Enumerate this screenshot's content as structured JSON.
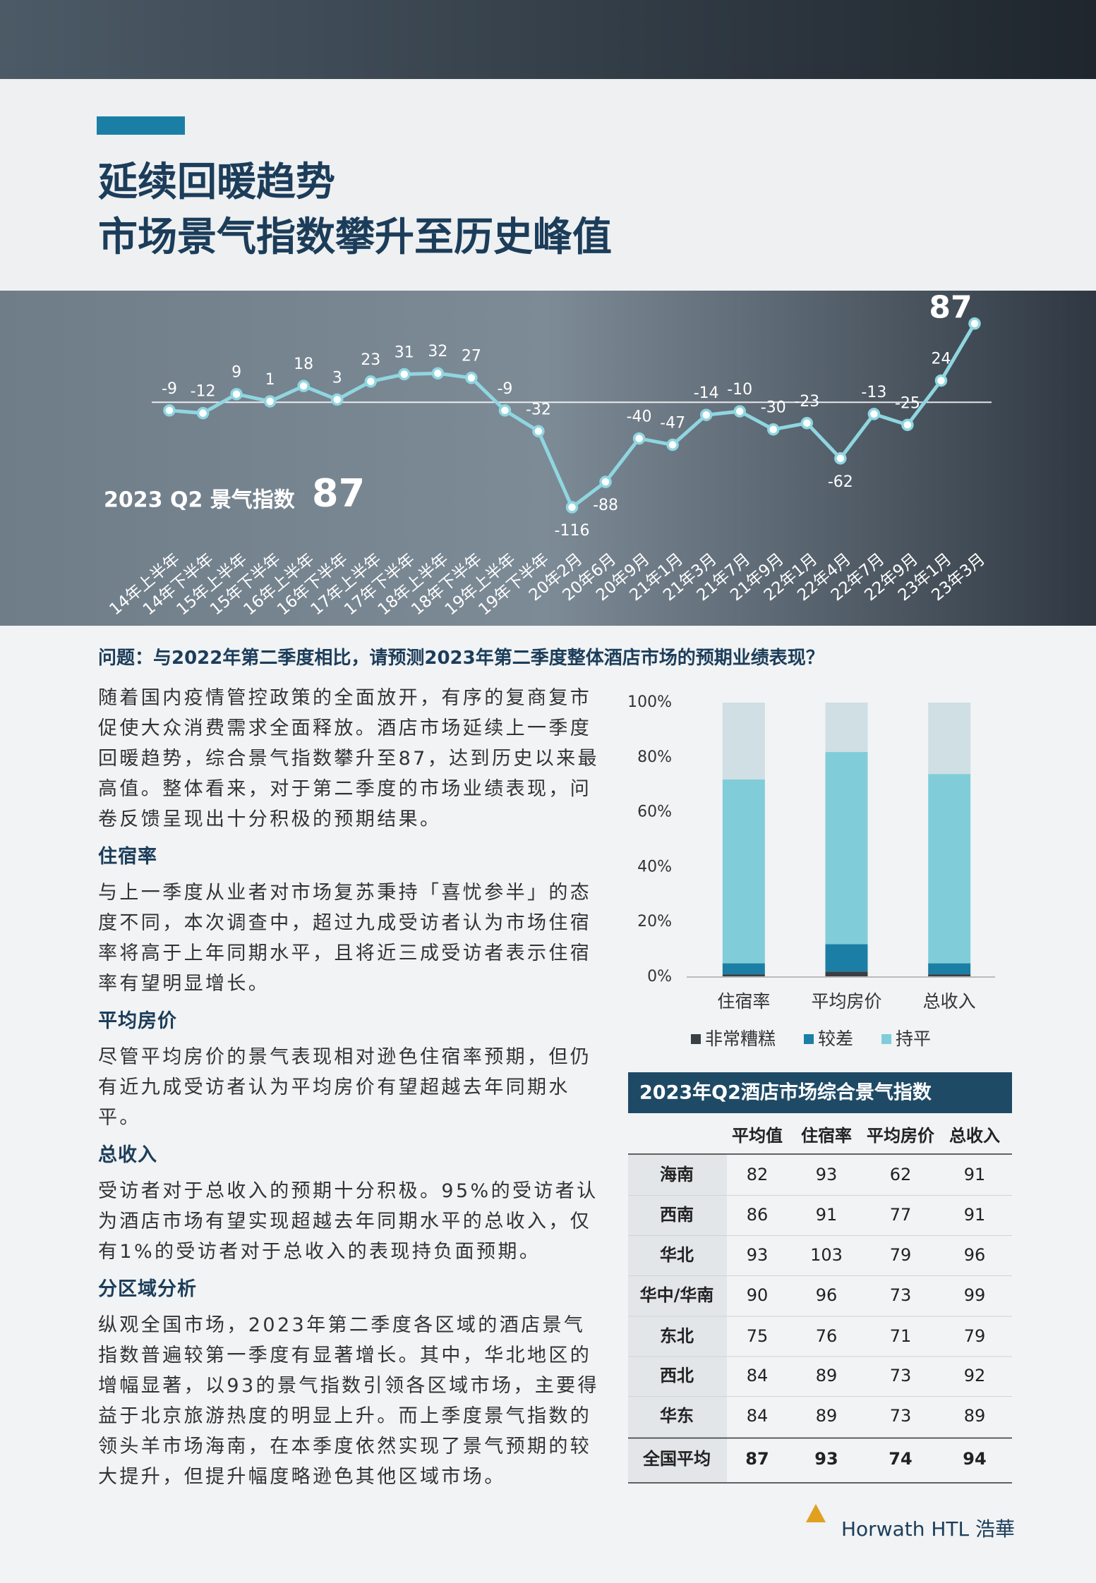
{
  "header": {
    "title_lines": [
      "延续回暖趋势",
      "市场景气指数攀升至历史峰值"
    ]
  },
  "chart_data": [
    {
      "type": "line",
      "categories": [
        "14年上半年",
        "14年下半年",
        "15年上半年",
        "15年下半年",
        "16年上半年",
        "16年下半年",
        "17年上半年",
        "17年下半年",
        "18年上半年",
        "18年下半年",
        "19年上半年",
        "19年下半年",
        "20年2月",
        "20年6月",
        "20年9月",
        "21年1月",
        "21年3月",
        "21年7月",
        "21年9月",
        "22年1月",
        "22年4月",
        "22年7月",
        "22年9月",
        "23年1月",
        "23年3月"
      ],
      "values": [
        -9,
        -12,
        9,
        1,
        18,
        3,
        23,
        31,
        32,
        27,
        -9,
        -32,
        -116,
        -88,
        -40,
        -47,
        -14,
        -10,
        -30,
        -23,
        -62,
        -13,
        -25,
        24,
        87
      ],
      "color": "#8fd6e0",
      "ylim": [
        -130,
        100
      ],
      "index_label": "2023 Q2 景气指数",
      "index_value": 87
    },
    {
      "type": "stacked_bar",
      "categories": [
        "住宿率",
        "平均房价",
        "总收入"
      ],
      "series": [
        {
          "name": "非常糟糕",
          "color": "#3a3f44",
          "values": [
            1,
            2,
            1
          ]
        },
        {
          "name": "较差",
          "color": "#1b7fa5",
          "values": [
            4,
            10,
            4
          ]
        },
        {
          "name": "持平",
          "color": "#80cdd9",
          "values": [
            67,
            70,
            69
          ]
        },
        {
          "name": null,
          "color": "#cfdfe3",
          "values": [
            28,
            18,
            26
          ]
        }
      ],
      "ylim": [
        0,
        100
      ],
      "yticks": [
        {
          "value": 0,
          "label": "0%"
        },
        {
          "value": 20,
          "label": "20%"
        },
        {
          "value": 40,
          "label": "40%"
        },
        {
          "value": 60,
          "label": "60%"
        },
        {
          "value": 80,
          "label": "80%"
        },
        {
          "value": 100,
          "label": "100%"
        }
      ]
    }
  ],
  "question": "问题：与2022年第二季度相比，请预测2023年第二季度整体酒店市场的预期业绩表现？",
  "intro": "随着国内疫情管控政策的全面放开，有序的复商复市促使大众消费需求全面释放。酒店市场延续上一季度回暖趋势，综合景气指数攀升至87，达到历史以来最高值。整体看来，对于第二季度的市场业绩表现，问卷反馈呈现出十分积极的预期结果。",
  "sections": [
    {
      "heading": "住宿率",
      "text": "与上一季度从业者对市场复苏秉持「喜忧参半」的态度不同，本次调查中，超过九成受访者认为市场住宿率将高于上年同期水平，且将近三成受访者表示住宿率有望明显增长。"
    },
    {
      "heading": "平均房价",
      "text": "尽管平均房价的景气表现相对逊色住宿率预期，但仍有近九成受访者认为平均房价有望超越去年同期水平。"
    },
    {
      "heading": "总收入",
      "text": "受访者对于总收入的预期十分积极。95%的受访者认为酒店市场有望实现超越去年同期水平的总收入，仅有1%的受访者对于总收入的表现持负面预期。"
    },
    {
      "heading": "分区域分析",
      "text": "纵观全国市场，2023年第二季度各区域的酒店景气指数普遍较第一季度有显著增长。其中，华北地区的增幅显著，以93的景气指数引领各区域市场，主要得益于北京旅游热度的明显上升。而上季度景气指数的领头羊市场海南，在本季度依然实现了景气预期的较大提升，但提升幅度略逊色其他区域市场。"
    }
  ],
  "table": {
    "title": "2023年Q2酒店市场综合景气指数",
    "columns": [
      "平均值",
      "住宿率",
      "平均房价",
      "总收入"
    ],
    "rows": [
      {
        "label": "海南",
        "values": [
          82,
          93,
          62,
          91
        ]
      },
      {
        "label": "西南",
        "values": [
          86,
          91,
          77,
          91
        ]
      },
      {
        "label": "华北",
        "values": [
          93,
          103,
          79,
          96
        ]
      },
      {
        "label": "华中/华南",
        "values": [
          90,
          96,
          73,
          99
        ]
      },
      {
        "label": "东北",
        "values": [
          75,
          76,
          71,
          79
        ]
      },
      {
        "label": "西北",
        "values": [
          84,
          89,
          73,
          92
        ]
      },
      {
        "label": "华东",
        "values": [
          84,
          89,
          73,
          89
        ]
      },
      {
        "label": "全国平均",
        "values": [
          87,
          93,
          74,
          94
        ]
      }
    ]
  },
  "footer": {
    "logo": "Horwath HTL",
    "logo_cn": "浩華"
  }
}
